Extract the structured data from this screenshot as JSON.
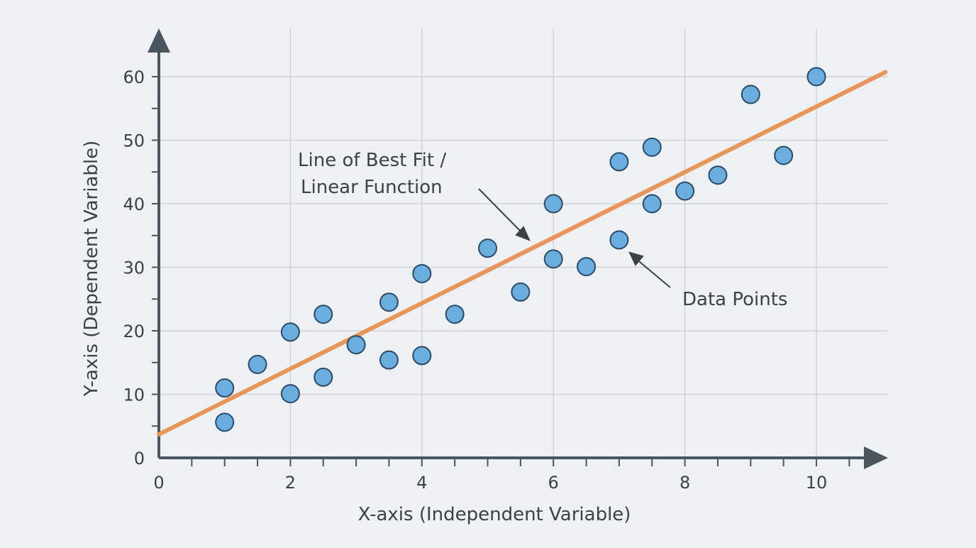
{
  "chart_data": {
    "type": "scatter",
    "xlabel": "X-axis (Independent Variable)",
    "ylabel": "Y-axis (Dependent Variable)",
    "xlim": [
      0,
      11
    ],
    "ylim": [
      0,
      65
    ],
    "x_ticks": [
      0,
      2,
      4,
      6,
      8,
      10
    ],
    "y_ticks": [
      0,
      10,
      20,
      30,
      40,
      50,
      60
    ],
    "grid": true,
    "points": [
      [
        1,
        11
      ],
      [
        1,
        5.6
      ],
      [
        1.5,
        14.7
      ],
      [
        2,
        19.8
      ],
      [
        2,
        10.1
      ],
      [
        2.5,
        22.6
      ],
      [
        2.5,
        12.7
      ],
      [
        3,
        17.8
      ],
      [
        3.5,
        24.5
      ],
      [
        3.5,
        15.4
      ],
      [
        4,
        29
      ],
      [
        4,
        16.1
      ],
      [
        4.5,
        22.6
      ],
      [
        5,
        33
      ],
      [
        5.5,
        26.1
      ],
      [
        6,
        40
      ],
      [
        6,
        31.3
      ],
      [
        6.5,
        30.1
      ],
      [
        7,
        46.6
      ],
      [
        7,
        34.3
      ],
      [
        7.5,
        48.9
      ],
      [
        7.5,
        40
      ],
      [
        8,
        42
      ],
      [
        8.5,
        44.5
      ],
      [
        9,
        57.2
      ],
      [
        9.5,
        47.6
      ],
      [
        10,
        60
      ]
    ],
    "fit_line": {
      "intercept": 3.7,
      "slope": 5.16,
      "x_range": [
        0,
        11.05
      ]
    },
    "annotations": {
      "line_label_1": "Line of Best Fit /",
      "line_label_2": "Linear Function",
      "points_label": "Data Points"
    },
    "colors": {
      "background": "#eef1f4",
      "point_fill": "#6aaee0",
      "point_stroke": "#2c4a66",
      "line": "#e8955a",
      "axis": "#4a5560",
      "grid": "#c9ced4"
    }
  }
}
